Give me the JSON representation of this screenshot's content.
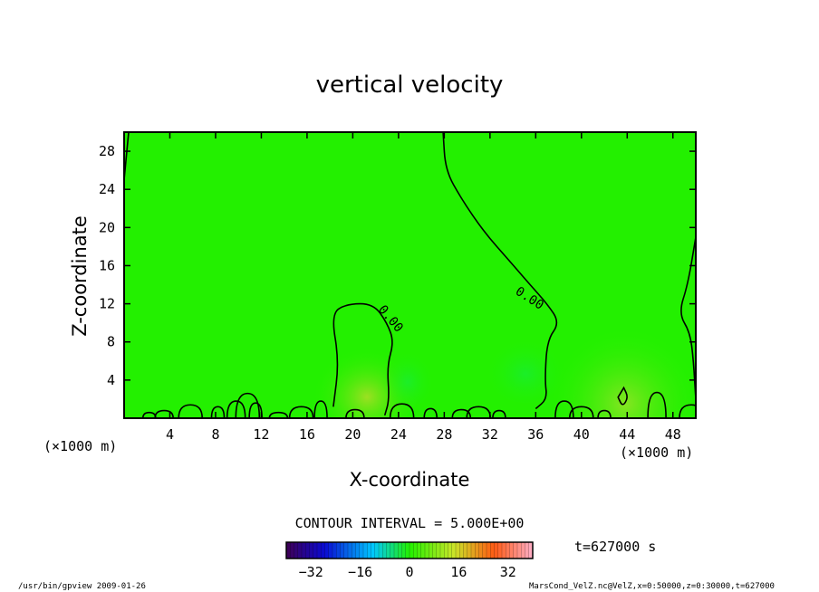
{
  "chart_data": {
    "type": "heatmap",
    "title": "vertical velocity",
    "xlabel": "X-coordinate",
    "ylabel": "Z-coordinate",
    "x_unit": "(×1000 m)",
    "y_unit": "(×1000 m)",
    "xlim": [
      0,
      50
    ],
    "ylim": [
      0,
      30
    ],
    "x_ticks": [
      4,
      8,
      12,
      16,
      20,
      24,
      28,
      32,
      36,
      40,
      44,
      48
    ],
    "y_ticks": [
      4,
      8,
      12,
      16,
      20,
      24,
      28
    ],
    "contour_interval_text": "CONTOUR INTERVAL = 5.000E+00",
    "contour_labels": [
      "0.00",
      "0.00"
    ],
    "time_text": "t=627000 s",
    "colorbar": {
      "min": -40,
      "max": 40,
      "ticks": [
        -32,
        -16,
        0,
        16,
        32
      ]
    },
    "zero_contour": {
      "left_edge": [
        [
          0.4,
          30
        ],
        [
          0.0,
          25
        ]
      ],
      "central_blob": [
        [
          18.3,
          1.2
        ],
        [
          18.8,
          6
        ],
        [
          18.1,
          11
        ],
        [
          19.5,
          12
        ],
        [
          21.8,
          12
        ],
        [
          23.0,
          10
        ],
        [
          23.6,
          8
        ],
        [
          23.0,
          5.5
        ],
        [
          23.2,
          2
        ],
        [
          22.8,
          0.3
        ]
      ],
      "right_boundary": [
        [
          27.9,
          30
        ],
        [
          28.1,
          26
        ],
        [
          29.5,
          23
        ],
        [
          31.5,
          19.5
        ],
        [
          33.7,
          16.5
        ],
        [
          35.5,
          14
        ],
        [
          37.0,
          12
        ],
        [
          38.1,
          10
        ],
        [
          37.0,
          8.2
        ],
        [
          36.8,
          4
        ],
        [
          37.0,
          2
        ],
        [
          36.0,
          1
        ]
      ],
      "right_edge": [
        [
          50.0,
          19
        ],
        [
          49.3,
          14
        ],
        [
          48.5,
          11
        ],
        [
          49.5,
          9
        ],
        [
          49.8,
          6
        ],
        [
          50.0,
          2
        ]
      ],
      "small_loop": [
        [
          43.7,
          3.2
        ],
        [
          44.1,
          2.2
        ],
        [
          43.6,
          1.2
        ],
        [
          43.2,
          2.2
        ]
      ]
    }
  },
  "footer": {
    "left": "/usr/bin/gpview  2009-01-26",
    "right": "MarsCond_VelZ.nc@VelZ,x=0:50000,z=0:30000,t=627000"
  },
  "colors": {
    "background": "#ffffff",
    "field": "#23f000",
    "warm": "#a8e22a",
    "contour": "#000000"
  }
}
